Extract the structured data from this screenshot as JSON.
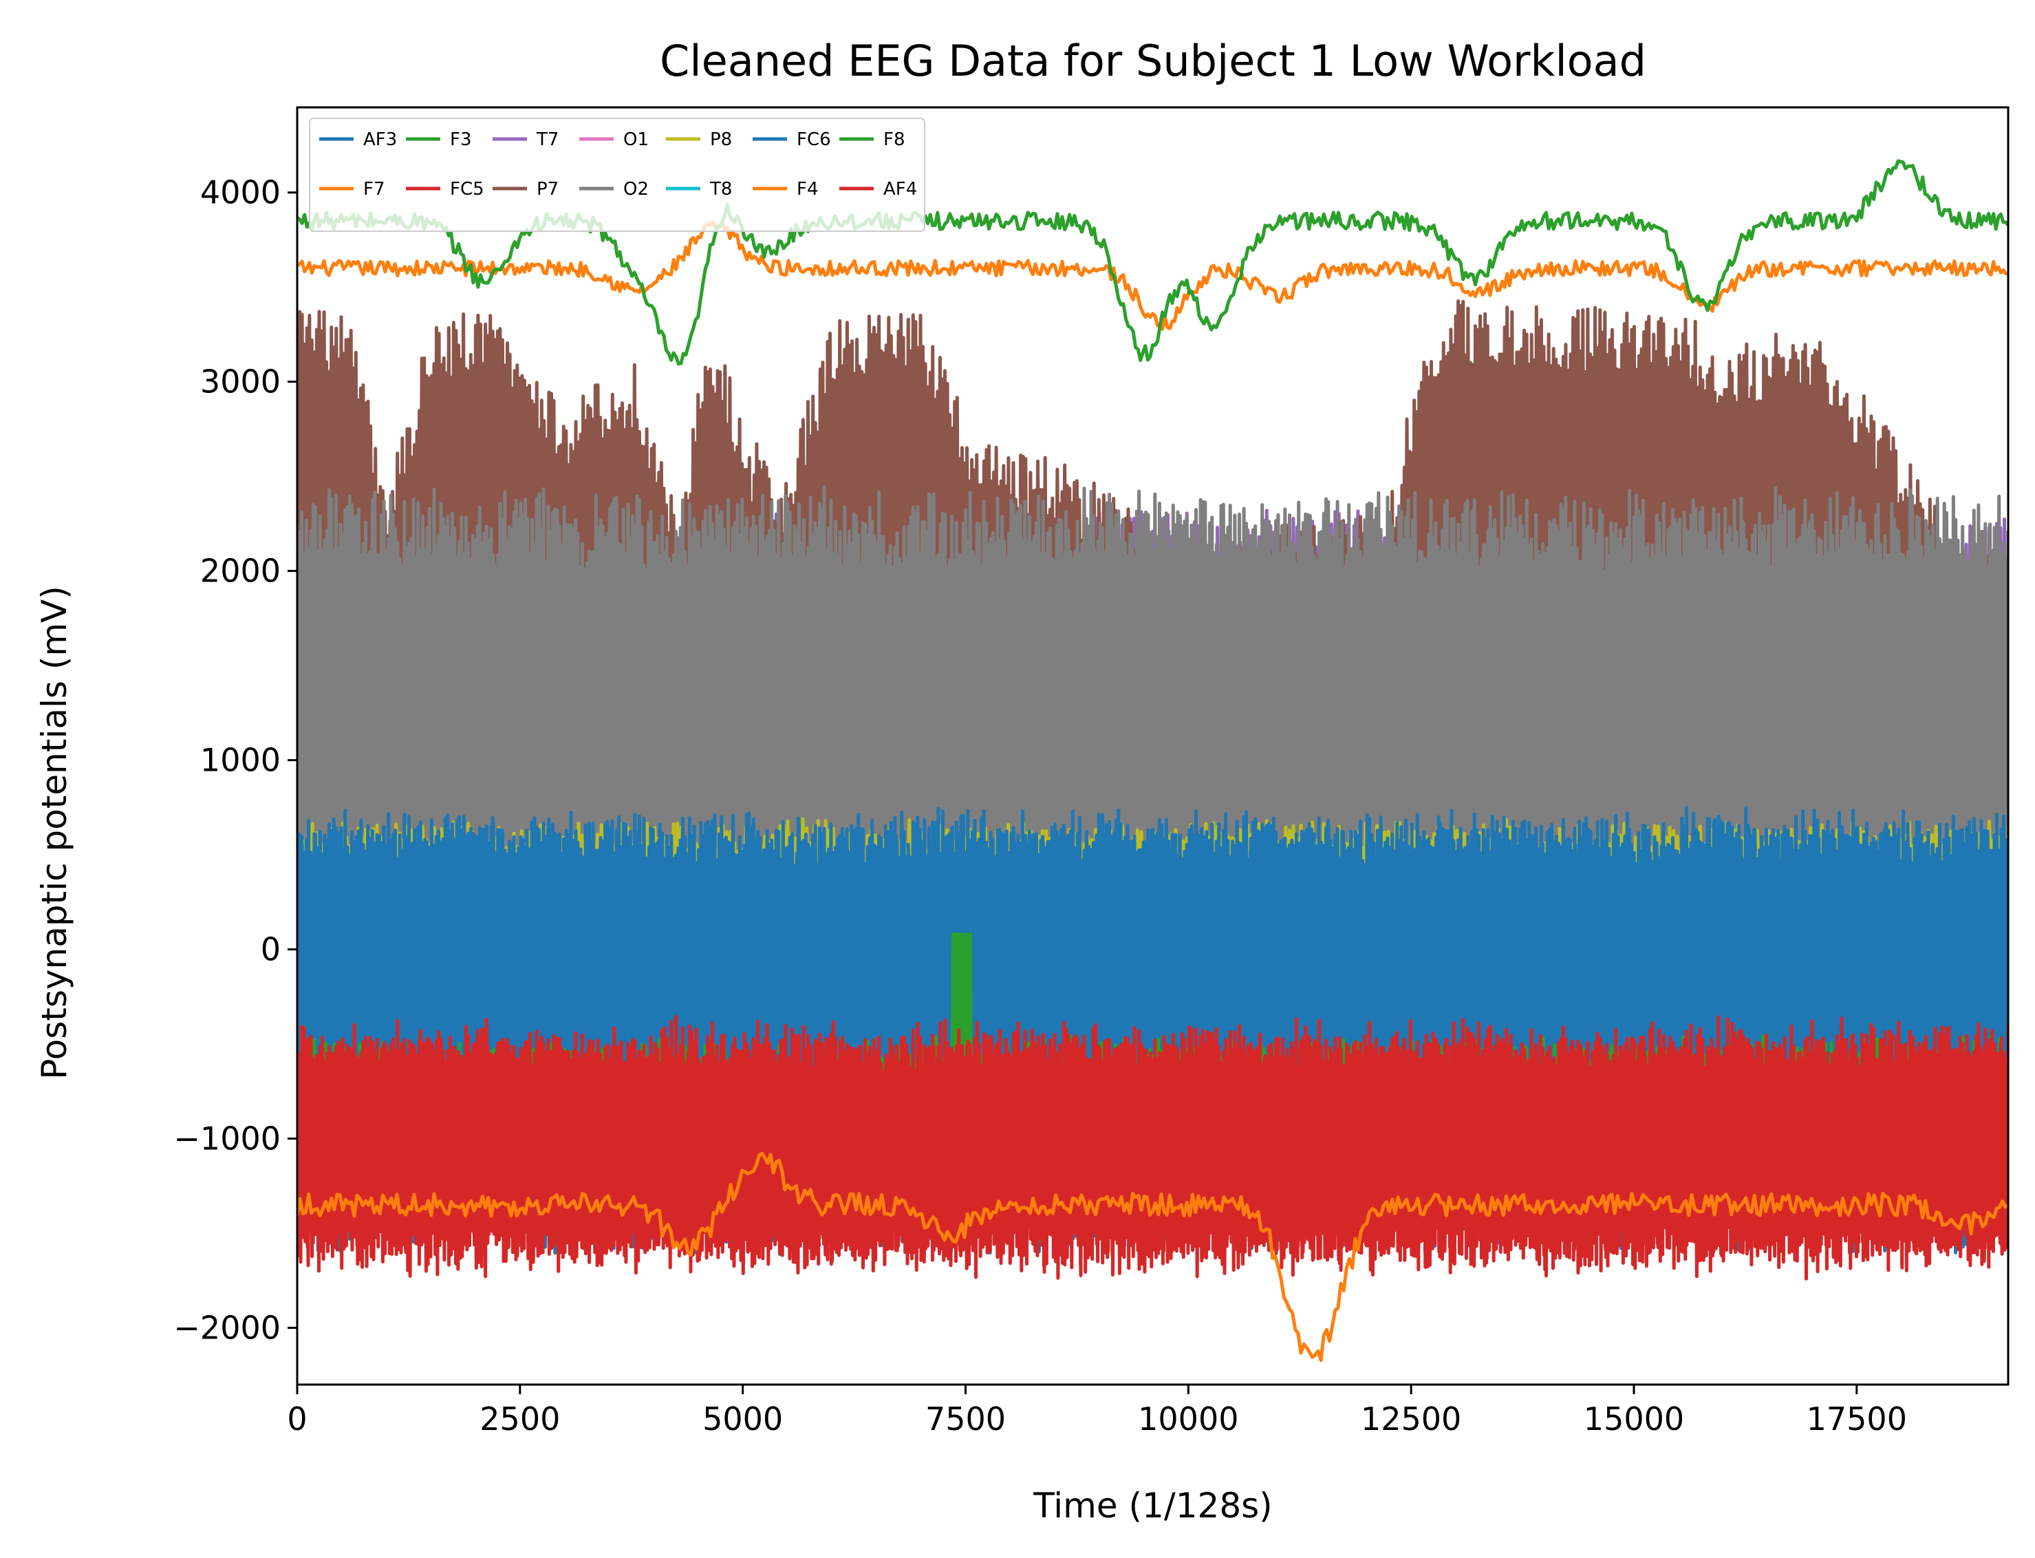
{
  "chart_data": {
    "type": "line",
    "title": "Cleaned EEG Data for Subject 1 Low Workload",
    "xlabel": "Time (1/128s)",
    "ylabel": "Postsynaptic potentials (mV)",
    "xlim": [
      0,
      19200
    ],
    "ylim": [
      -2300,
      4450
    ],
    "xticks": [
      0,
      2500,
      5000,
      7500,
      10000,
      12500,
      15000,
      17500
    ],
    "xtick_labels": [
      "0",
      "2500",
      "5000",
      "7500",
      "10000",
      "12500",
      "15000",
      "17500"
    ],
    "yticks": [
      -2000,
      -1000,
      0,
      1000,
      2000,
      3000,
      4000
    ],
    "ytick_labels": [
      "−2000",
      "−1000",
      "0",
      "1000",
      "2000",
      "3000",
      "4000"
    ],
    "grid": false,
    "legend_position": "top-left",
    "legend_columns": 7,
    "series": [
      {
        "name": "AF3",
        "color": "#1f77b4",
        "band": "signal band -1600 to 700, x=0..19200"
      },
      {
        "name": "F7",
        "color": "#ff7f0e",
        "band": "trend ~3600 with dips to 3450, peak 3820 near x=4700"
      },
      {
        "name": "F3",
        "color": "#2ca02c",
        "band": "trend ~3850, dips to 3000 near x=4300 and 3100 near x=9500, peaks ~4150"
      },
      {
        "name": "FC5",
        "color": "#d62728",
        "band": "signal band -1700 to -450"
      },
      {
        "name": "T7",
        "color": "#9467bd",
        "band": "signal band 400 to 2350"
      },
      {
        "name": "P7",
        "color": "#8c564b",
        "band": "signal band 1200 to 3450"
      },
      {
        "name": "O1",
        "color": "#e377c2",
        "band": "signal band 0 to 2100"
      },
      {
        "name": "O2",
        "color": "#7f7f7f",
        "band": "signal band 0 to 2450"
      },
      {
        "name": "P8",
        "color": "#bcbd22",
        "band": "signal band 250 to 700"
      },
      {
        "name": "T8",
        "color": "#17becf",
        "band": "signal band -300 to 100"
      },
      {
        "name": "FC6",
        "color": "#1f77b4",
        "band": "signal band -600 to 700"
      },
      {
        "name": "F4",
        "color": "#ff7f0e",
        "band": "trend ~-1350, dip to -1980 near x=11300"
      },
      {
        "name": "F8",
        "color": "#2ca02c",
        "band": "signal band -1300 to -500, spike to 80 near x=7450"
      },
      {
        "name": "AF4",
        "color": "#d62728",
        "band": "signal band -1750 to -350"
      }
    ]
  }
}
